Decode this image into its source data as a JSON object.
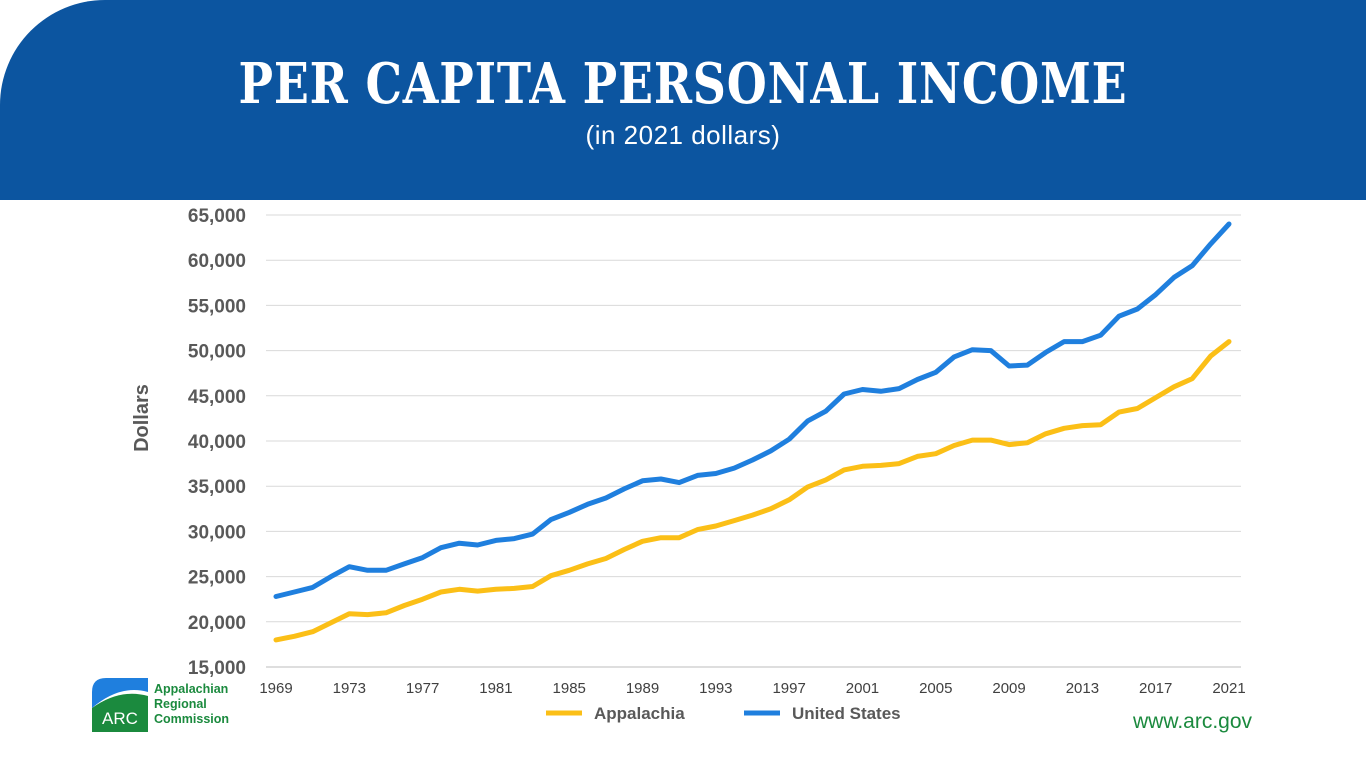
{
  "header": {
    "title": "PER CAPITA PERSONAL INCOME",
    "subtitle": "(in 2021 dollars)"
  },
  "footer": {
    "logo_mark": "ARC",
    "org_line1": "Appalachian",
    "org_line2": "Regional",
    "org_line3": "Commission",
    "website": "www.arc.gov"
  },
  "colors": {
    "frame": "#0c55a0",
    "appalachia": "#fbbf17",
    "united_states": "#1f7fde",
    "logo_green": "#1b8a3e",
    "logo_blue": "#1f7fde"
  },
  "chart_data": {
    "type": "line",
    "title": "PER CAPITA PERSONAL INCOME",
    "subtitle": "(in 2021 dollars)",
    "xlabel": "",
    "ylabel": "Dollars",
    "xlim": [
      1969,
      2021
    ],
    "ylim": [
      15000,
      65000
    ],
    "yticks": [
      15000,
      20000,
      25000,
      30000,
      35000,
      40000,
      45000,
      50000,
      55000,
      60000,
      65000
    ],
    "ytick_labels": [
      "15,000",
      "20,000",
      "25,000",
      "30,000",
      "35,000",
      "40,000",
      "45,000",
      "50,000",
      "55,000",
      "60,000",
      "65,000"
    ],
    "xticks": [
      1969,
      1973,
      1977,
      1981,
      1985,
      1989,
      1993,
      1997,
      2001,
      2005,
      2009,
      2013,
      2017,
      2021
    ],
    "xtick_labels": [
      "1969",
      "1973",
      "1977",
      "1981",
      "1985",
      "1989",
      "1993",
      "1997",
      "2001",
      "2005",
      "2009",
      "2013",
      "2017",
      "2021"
    ],
    "grid": true,
    "legend": "bottom",
    "x": [
      1969,
      1970,
      1971,
      1972,
      1973,
      1974,
      1975,
      1976,
      1977,
      1978,
      1979,
      1980,
      1981,
      1982,
      1983,
      1984,
      1985,
      1986,
      1987,
      1988,
      1989,
      1990,
      1991,
      1992,
      1993,
      1994,
      1995,
      1996,
      1997,
      1998,
      1999,
      2000,
      2001,
      2002,
      2003,
      2004,
      2005,
      2006,
      2007,
      2008,
      2009,
      2010,
      2011,
      2012,
      2013,
      2014,
      2015,
      2016,
      2017,
      2018,
      2019,
      2020,
      2021
    ],
    "series": [
      {
        "name": "Appalachia",
        "color": "#fbbf17",
        "values": [
          18000,
          18400,
          18900,
          19900,
          20900,
          20800,
          21000,
          21800,
          22500,
          23300,
          23600,
          23400,
          23600,
          23700,
          23900,
          25100,
          25700,
          26400,
          27000,
          28000,
          28900,
          29300,
          29300,
          30200,
          30600,
          31200,
          31800,
          32500,
          33500,
          34900,
          35700,
          36800,
          37200,
          37300,
          37500,
          38300,
          38600,
          39500,
          40100,
          40100,
          39600,
          39800,
          40800,
          41400,
          41700,
          41800,
          43200,
          43600,
          44800,
          46000,
          46900,
          49400,
          51000
        ]
      },
      {
        "name": "United States",
        "color": "#1f7fde",
        "values": [
          22800,
          23300,
          23800,
          25000,
          26100,
          25700,
          25700,
          26400,
          27100,
          28200,
          28700,
          28500,
          29000,
          29200,
          29700,
          31300,
          32100,
          33000,
          33700,
          34700,
          35600,
          35800,
          35400,
          36200,
          36400,
          37000,
          37900,
          38900,
          40200,
          42200,
          43300,
          45200,
          45700,
          45500,
          45800,
          46800,
          47600,
          49300,
          50100,
          50000,
          48300,
          48400,
          49800,
          51000,
          51000,
          51700,
          53800,
          54600,
          56200,
          58100,
          59400,
          61800,
          64000
        ]
      }
    ]
  }
}
